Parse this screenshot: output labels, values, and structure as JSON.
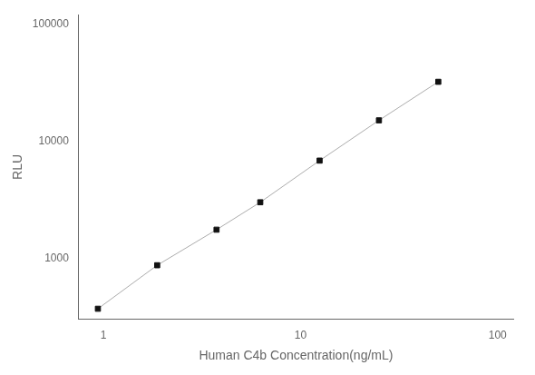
{
  "chart_data": {
    "type": "line",
    "x": [
      0.938,
      1.875,
      3.75,
      6.25,
      12.5,
      25,
      50
    ],
    "values": [
      370,
      870,
      1750,
      3000,
      6800,
      15000,
      32000
    ],
    "x_label": "Human C4b Concentration(ng/mL)",
    "y_label": "RLU",
    "xlim": [
      0.75,
      120
    ],
    "ylim": [
      300,
      120000
    ],
    "xticks": [
      1,
      10,
      100
    ],
    "yticks": [
      1000,
      10000,
      100000
    ],
    "log": true,
    "grid": false,
    "color": "#111111",
    "marker": "square",
    "line_style": "solid"
  }
}
